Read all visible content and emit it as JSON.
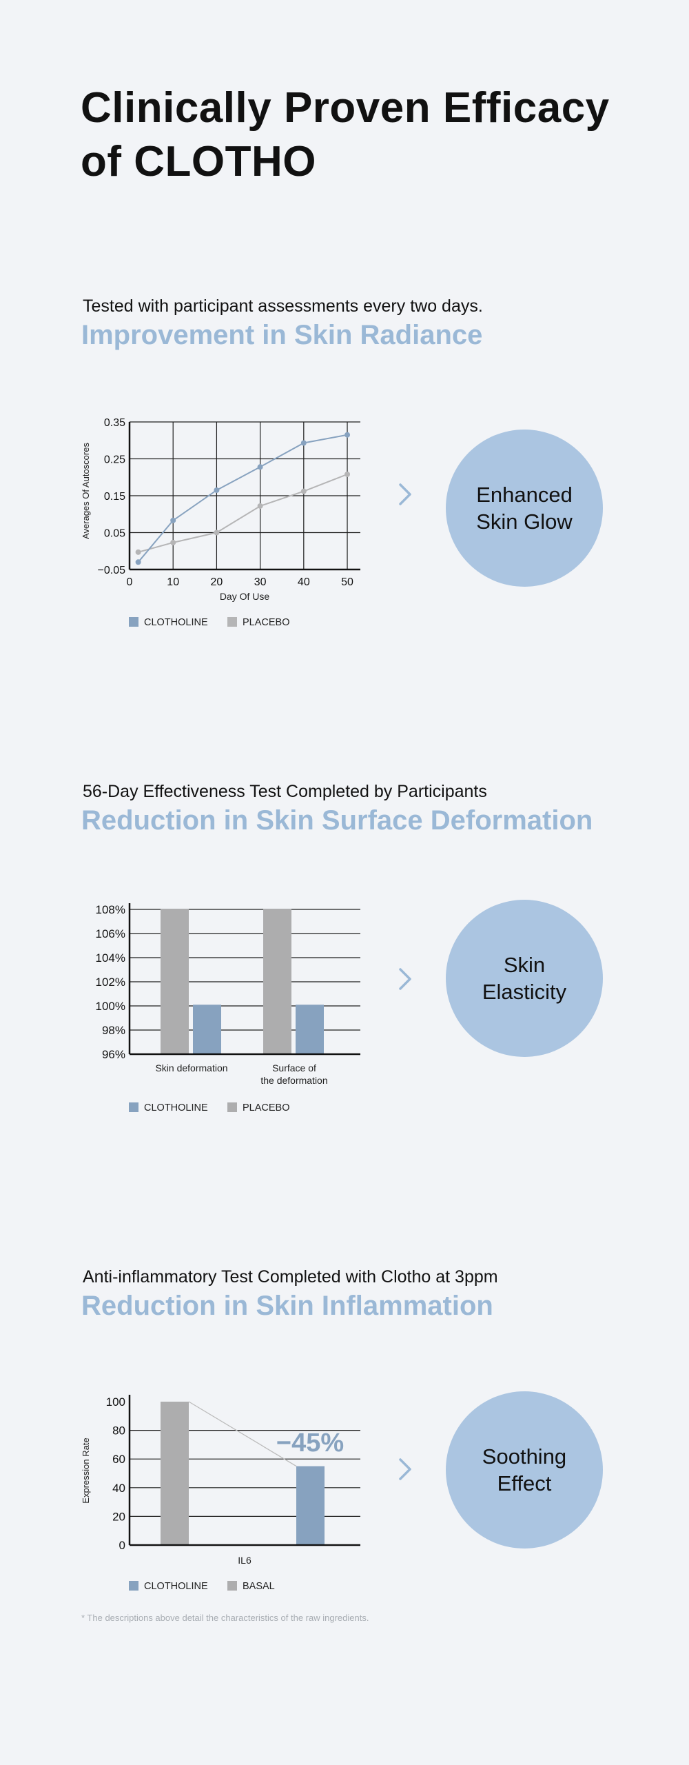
{
  "page": {
    "title_line1": "Clinically Proven Efficacy",
    "title_line2": "of CLOTHO",
    "footnote": "* The descriptions above detail the characteristics of the raw ingredients."
  },
  "colors": {
    "accent": "#9ab8d6",
    "clotholine": "#87a2bf",
    "placebo": "#adadae",
    "badge": "#abc5e1",
    "background": "#f2f4f7"
  },
  "sections": [
    {
      "subtitle": "Tested with participant assessments every two days.",
      "heading": "Improvement in Skin Radiance",
      "badge_line1": "Enhanced",
      "badge_line2": "Skin Glow",
      "icon": "chevron-right-icon"
    },
    {
      "subtitle": "56-Day Effectiveness Test Completed by Participants",
      "heading": "Reduction in Skin Surface Deformation",
      "badge_line1": "Skin",
      "badge_line2": "Elasticity",
      "icon": "chevron-right-icon"
    },
    {
      "subtitle": "Anti-inflammatory Test Completed with Clotho at 3ppm",
      "heading": "Reduction in Skin Inflammation",
      "badge_line1": "Soothing",
      "badge_line2": "Effect",
      "icon": "chevron-right-icon"
    }
  ],
  "chart_data": [
    {
      "type": "line",
      "xlabel": "Day Of Use",
      "ylabel": "Averages Of Autoscores",
      "xlim": [
        0,
        53
      ],
      "ylim": [
        -0.05,
        0.35
      ],
      "xticks": [
        0,
        10,
        20,
        30,
        40,
        50
      ],
      "xtick_labels": [
        "0",
        "10",
        "20",
        "30",
        "40",
        "50"
      ],
      "yticks": [
        0.35,
        0.25,
        0.15,
        0.05,
        -0.05
      ],
      "ytick_labels": [
        "0.35",
        "0.25",
        "0.15",
        "0.05",
        "−0.05"
      ],
      "grid": true,
      "legend_position": "bottom-left",
      "series": [
        {
          "name": "CLOTHOLINE",
          "color": "#87a2bf",
          "x": [
            2,
            10,
            20,
            30,
            40,
            50
          ],
          "y": [
            -0.03,
            0.083,
            0.165,
            0.228,
            0.293,
            0.315
          ]
        },
        {
          "name": "PLACEBO",
          "color": "#b5b5b6",
          "x": [
            2,
            10,
            20,
            30,
            40,
            50
          ],
          "y": [
            -0.003,
            0.023,
            0.05,
            0.122,
            0.162,
            0.208
          ]
        }
      ]
    },
    {
      "type": "bar",
      "categories": [
        "Skin deformation",
        "Surface of the deformation"
      ],
      "category_lines": [
        [
          "Skin deformation"
        ],
        [
          "Surface of",
          "the deformation"
        ]
      ],
      "ylim": [
        96,
        108
      ],
      "yticks": [
        108,
        106,
        104,
        102,
        100,
        98,
        96
      ],
      "ytick_labels": [
        "108%",
        "106%",
        "104%",
        "102%",
        "100%",
        "98%",
        "96%"
      ],
      "grid": true,
      "legend_position": "bottom-left",
      "series": [
        {
          "name": "PLACEBO",
          "color": "#adadae",
          "values": [
            108.3,
            108.3
          ]
        },
        {
          "name": "CLOTHOLINE",
          "color": "#87a2bf",
          "values": [
            100.1,
            100.1
          ]
        }
      ],
      "legend": [
        {
          "name": "CLOTHOLINE",
          "color": "#87a2bf"
        },
        {
          "name": "PLACEBO",
          "color": "#adadae"
        }
      ]
    },
    {
      "type": "bar",
      "categories": [
        "IL6"
      ],
      "ylabel": "Expression Rate",
      "ylim": [
        0,
        100
      ],
      "yticks": [
        100,
        80,
        60,
        40,
        20,
        0
      ],
      "ytick_labels": [
        "100",
        "80",
        "60",
        "40",
        "20",
        "0"
      ],
      "grid": true,
      "legend_position": "bottom-left",
      "annotation": "−45%",
      "series": [
        {
          "name": "BASAL",
          "color": "#adadae",
          "values": [
            100
          ]
        },
        {
          "name": "CLOTHOLINE",
          "color": "#87a2bf",
          "values": [
            55
          ]
        }
      ],
      "legend": [
        {
          "name": "CLOTHOLINE",
          "color": "#87a2bf"
        },
        {
          "name": "BASAL",
          "color": "#adadae"
        }
      ]
    }
  ]
}
